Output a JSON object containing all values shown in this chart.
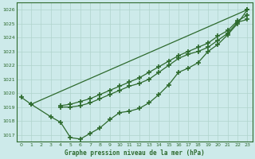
{
  "x": [
    0,
    1,
    2,
    3,
    4,
    5,
    6,
    7,
    8,
    9,
    10,
    11,
    12,
    13,
    14,
    15,
    16,
    17,
    18,
    19,
    20,
    21,
    22,
    23
  ],
  "line1": [
    1019.7,
    1019.2,
    null,
    null,
    null,
    null,
    null,
    null,
    null,
    null,
    null,
    null,
    null,
    null,
    null,
    null,
    null,
    null,
    null,
    null,
    null,
    null,
    null,
    1026.0
  ],
  "line2": [
    null,
    1019.2,
    null,
    1018.3,
    1017.9,
    1016.8,
    1016.7,
    1017.1,
    1017.5,
    1018.1,
    1018.6,
    1018.7,
    1018.9,
    1019.3,
    1019.9,
    1020.6,
    1021.5,
    1021.8,
    1022.2,
    1023.0,
    1023.5,
    1024.2,
    1025.0,
    1026.0
  ],
  "line3": [
    null,
    null,
    null,
    null,
    1019.0,
    1019.0,
    1019.1,
    1019.3,
    1019.6,
    1019.9,
    1020.2,
    1020.5,
    1020.7,
    1021.0,
    1021.5,
    1022.0,
    1022.5,
    1022.8,
    1023.0,
    1023.3,
    1023.8,
    1024.3,
    1025.1,
    1025.3
  ],
  "line4": [
    null,
    null,
    null,
    null,
    1019.1,
    1019.2,
    1019.4,
    1019.6,
    1019.9,
    1020.2,
    1020.5,
    1020.8,
    1021.1,
    1021.5,
    1021.9,
    1022.3,
    1022.7,
    1023.0,
    1023.3,
    1023.6,
    1024.1,
    1024.5,
    1025.2,
    1025.6
  ],
  "line_color": "#2d6a2d",
  "bg_color": "#cdeaea",
  "grid_color": "#b0d4cc",
  "xlabel": "Graphe pression niveau de la mer (hPa)",
  "ylim": [
    1016.5,
    1026.5
  ],
  "xlim": [
    -0.5,
    23.5
  ],
  "yticks": [
    1017,
    1018,
    1019,
    1020,
    1021,
    1022,
    1023,
    1024,
    1025,
    1026
  ],
  "xticks": [
    0,
    1,
    2,
    3,
    4,
    5,
    6,
    7,
    8,
    9,
    10,
    11,
    12,
    13,
    14,
    15,
    16,
    17,
    18,
    19,
    20,
    21,
    22,
    23
  ],
  "marker": "+",
  "markersize": 4,
  "linewidth": 0.9,
  "figwidth": 3.2,
  "figheight": 2.0,
  "dpi": 100
}
